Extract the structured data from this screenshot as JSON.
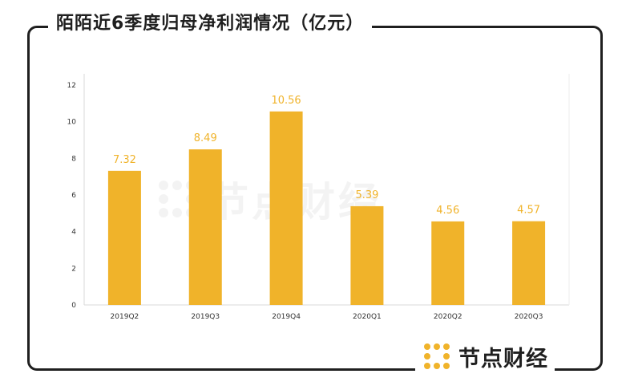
{
  "header": {
    "title": "陌陌近6季度归母净利润情况（亿元）"
  },
  "brand": {
    "name": "节点财经",
    "watermark": "节点财经",
    "logo_icon": "node-logo-icon"
  },
  "colors": {
    "bar": "#f0b32a",
    "label": "#f0b32a",
    "frame": "#1f1f1f"
  },
  "chart_data": {
    "type": "bar",
    "title": "陌陌近6季度归母净利润情况（亿元）",
    "categories": [
      "2019Q2",
      "2019Q3",
      "2019Q4",
      "2020Q1",
      "2020Q2",
      "2020Q3"
    ],
    "values": [
      7.32,
      8.49,
      10.56,
      5.39,
      4.56,
      4.57
    ],
    "value_labels": [
      "7.32",
      "8.49",
      "10.56",
      "5.39",
      "4.56",
      "4.57"
    ],
    "ylim": [
      0,
      12
    ],
    "yticks": [
      0,
      2,
      4,
      6,
      8,
      10,
      12
    ],
    "grid": false,
    "legend": "none"
  }
}
